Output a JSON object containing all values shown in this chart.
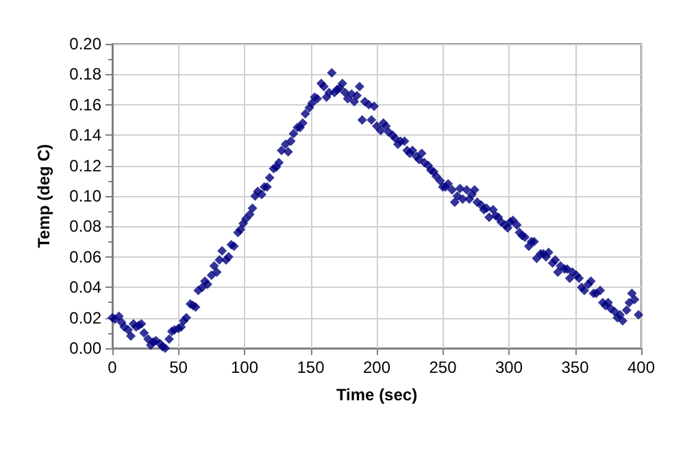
{
  "chart_data": {
    "type": "scatter",
    "xlabel": "Time (sec)",
    "ylabel": "Temp (deg C)",
    "marker": "diamond",
    "grid": true,
    "xlim": [
      0,
      400
    ],
    "xticks": [
      0,
      50,
      100,
      150,
      200,
      250,
      300,
      350,
      400
    ],
    "ylim": [
      0,
      0.2
    ],
    "yticks": [
      {
        "value": 0,
        "label": "0.00"
      },
      {
        "value": 0.02,
        "label": "0.02"
      },
      {
        "value": 0.04,
        "label": "0.04"
      },
      {
        "value": 0.06,
        "label": "0.06"
      },
      {
        "value": 0.08,
        "label": "0.08"
      },
      {
        "value": 0.1,
        "label": "0.10"
      },
      {
        "value": 0.12,
        "label": "0.12"
      },
      {
        "value": 0.14,
        "label": "0.14"
      },
      {
        "value": 0.16,
        "label": "0.16"
      },
      {
        "value": 0.18,
        "label": "0.18"
      },
      {
        "value": 0.2,
        "label": "0.20"
      }
    ],
    "series": [
      {
        "color": "#000080",
        "x": [
          0,
          2,
          5,
          7,
          9,
          12,
          14,
          16,
          18,
          20,
          22,
          24,
          27,
          29,
          31,
          33,
          36,
          38,
          40,
          43,
          45,
          47,
          50,
          52,
          54,
          56,
          59,
          61,
          63,
          65,
          68,
          70,
          72,
          75,
          77,
          79,
          81,
          83,
          86,
          88,
          90,
          92,
          95,
          97,
          99,
          101,
          104,
          106,
          108,
          110,
          113,
          115,
          117,
          119,
          122,
          124,
          126,
          128,
          131,
          133,
          135,
          137,
          140,
          142,
          144,
          146,
          149,
          151,
          153,
          155,
          158,
          160,
          162,
          164,
          166,
          168,
          170,
          172,
          174,
          176,
          178,
          181,
          183,
          185,
          187,
          189,
          191,
          194,
          196,
          198,
          200,
          203,
          205,
          207,
          209,
          212,
          214,
          216,
          218,
          221,
          223,
          225,
          227,
          230,
          232,
          234,
          236,
          239,
          241,
          243,
          245,
          248,
          250,
          252,
          254,
          257,
          259,
          261,
          263,
          265,
          268,
          270,
          272,
          274,
          276,
          279,
          281,
          283,
          285,
          288,
          290,
          292,
          294,
          297,
          299,
          301,
          303,
          306,
          308,
          310,
          312,
          315,
          317,
          319,
          321,
          324,
          326,
          328,
          330,
          333,
          335,
          337,
          339,
          342,
          344,
          346,
          348,
          351,
          353,
          355,
          357,
          360,
          362,
          364,
          366,
          369,
          371,
          373,
          375,
          377,
          380,
          382,
          384,
          386,
          389,
          391,
          393,
          395,
          398
        ],
        "values": [
          0.02,
          0.019,
          0.021,
          0.017,
          0.014,
          0.012,
          0.008,
          0.016,
          0.014,
          0.015,
          0.016,
          0.01,
          0.006,
          0.002,
          0.004,
          0.005,
          0.003,
          0.001,
          0.0,
          0.006,
          0.011,
          0.012,
          0.013,
          0.014,
          0.018,
          0.02,
          0.029,
          0.028,
          0.027,
          0.038,
          0.04,
          0.044,
          0.042,
          0.048,
          0.054,
          0.05,
          0.058,
          0.064,
          0.058,
          0.06,
          0.068,
          0.067,
          0.076,
          0.078,
          0.082,
          0.085,
          0.088,
          0.092,
          0.1,
          0.103,
          0.101,
          0.106,
          0.106,
          0.112,
          0.118,
          0.119,
          0.122,
          0.13,
          0.134,
          0.129,
          0.136,
          0.141,
          0.145,
          0.145,
          0.148,
          0.154,
          0.158,
          0.161,
          0.165,
          0.164,
          0.174,
          0.172,
          0.165,
          0.168,
          0.181,
          0.168,
          0.17,
          0.171,
          0.174,
          0.168,
          0.164,
          0.167,
          0.162,
          0.166,
          0.172,
          0.15,
          0.162,
          0.16,
          0.15,
          0.159,
          0.146,
          0.143,
          0.148,
          0.146,
          0.142,
          0.14,
          0.138,
          0.134,
          0.136,
          0.136,
          0.13,
          0.128,
          0.13,
          0.126,
          0.124,
          0.128,
          0.122,
          0.12,
          0.117,
          0.116,
          0.113,
          0.11,
          0.106,
          0.106,
          0.108,
          0.104,
          0.096,
          0.1,
          0.105,
          0.098,
          0.104,
          0.098,
          0.101,
          0.104,
          0.096,
          0.094,
          0.091,
          0.092,
          0.086,
          0.091,
          0.087,
          0.086,
          0.083,
          0.081,
          0.079,
          0.083,
          0.084,
          0.081,
          0.076,
          0.074,
          0.073,
          0.067,
          0.07,
          0.07,
          0.059,
          0.062,
          0.062,
          0.06,
          0.063,
          0.056,
          0.058,
          0.05,
          0.054,
          0.052,
          0.052,
          0.046,
          0.05,
          0.048,
          0.046,
          0.04,
          0.038,
          0.042,
          0.044,
          0.036,
          0.036,
          0.038,
          0.03,
          0.028,
          0.03,
          0.026,
          0.024,
          0.02,
          0.022,
          0.018,
          0.025,
          0.03,
          0.036,
          0.032,
          0.022
        ]
      }
    ]
  }
}
